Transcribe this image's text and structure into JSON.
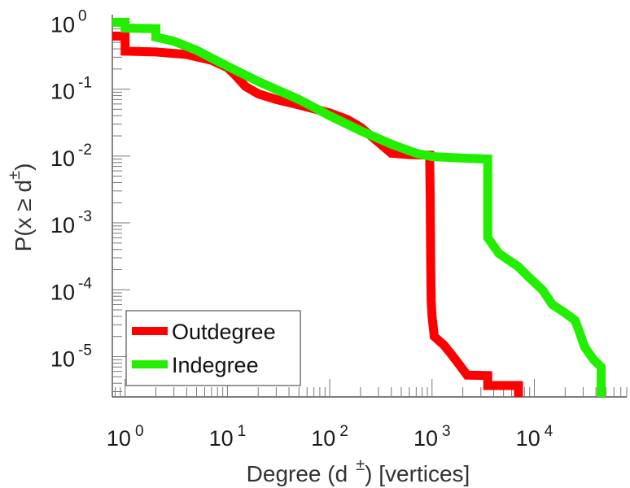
{
  "chart_data": {
    "type": "line",
    "scale": {
      "x": "log",
      "y": "log"
    },
    "xlabel": {
      "prefix": "Degree (d",
      "sup": "±",
      "suffix": ") [vertices]"
    },
    "ylabel": {
      "prefix": "P(x ≥ d",
      "sup": "±",
      "suffix": ")"
    },
    "xlim": [
      0.75,
      80000
    ],
    "ylim": [
      2.5e-06,
      1.3
    ],
    "x_ticks": [
      {
        "base": "10",
        "exp": "0",
        "value": 1
      },
      {
        "base": "10",
        "exp": "1",
        "value": 10
      },
      {
        "base": "10",
        "exp": "2",
        "value": 100
      },
      {
        "base": "10",
        "exp": "3",
        "value": 1000
      },
      {
        "base": "10",
        "exp": "4",
        "value": 10000
      }
    ],
    "y_ticks": [
      {
        "base": "10",
        "exp": "0",
        "value": 1
      },
      {
        "base": "10",
        "exp": "-1",
        "value": 0.1
      },
      {
        "base": "10",
        "exp": "-2",
        "value": 0.01
      },
      {
        "base": "10",
        "exp": "-3",
        "value": 0.001
      },
      {
        "base": "10",
        "exp": "-4",
        "value": 0.0001
      },
      {
        "base": "10",
        "exp": "-5",
        "value": 1e-05
      }
    ],
    "grid": false,
    "legend": {
      "position": "bottom-left"
    },
    "series": [
      {
        "name": "Outdegree",
        "color": "#ff0000",
        "points": [
          [
            0.75,
            0.62
          ],
          [
            1,
            0.62
          ],
          [
            1,
            0.37
          ],
          [
            2,
            0.36
          ],
          [
            4,
            0.33
          ],
          [
            7,
            0.27
          ],
          [
            10,
            0.21
          ],
          [
            12,
            0.16
          ],
          [
            15,
            0.11
          ],
          [
            20,
            0.085
          ],
          [
            30,
            0.07
          ],
          [
            50,
            0.058
          ],
          [
            100,
            0.044
          ],
          [
            150,
            0.035
          ],
          [
            200,
            0.027
          ],
          [
            300,
            0.016
          ],
          [
            400,
            0.011
          ],
          [
            600,
            0.0105
          ],
          [
            950,
            0.0103
          ],
          [
            950,
            0.008
          ],
          [
            960,
            0.002
          ],
          [
            970,
            0.0003
          ],
          [
            980,
            7e-05
          ],
          [
            1000,
            4e-05
          ],
          [
            1050,
            2e-05
          ],
          [
            1300,
            1.5e-05
          ],
          [
            1500,
            1.15e-05
          ],
          [
            1800,
            8e-06
          ],
          [
            2200,
            5.3e-06
          ],
          [
            3500,
            5.2e-06
          ],
          [
            3500,
            3.7e-06
          ],
          [
            7000,
            3.7e-06
          ],
          [
            7000,
            2.5e-06
          ]
        ]
      },
      {
        "name": "Indegree",
        "color": "#22ee00",
        "points": [
          [
            0.75,
            1.0
          ],
          [
            1,
            1.0
          ],
          [
            1,
            0.82
          ],
          [
            2,
            0.8
          ],
          [
            2,
            0.6
          ],
          [
            3,
            0.52
          ],
          [
            5,
            0.38
          ],
          [
            10,
            0.22
          ],
          [
            20,
            0.13
          ],
          [
            50,
            0.07
          ],
          [
            100,
            0.04
          ],
          [
            200,
            0.024
          ],
          [
            400,
            0.015
          ],
          [
            700,
            0.011
          ],
          [
            1000,
            0.0098
          ],
          [
            2000,
            0.0093
          ],
          [
            3500,
            0.009
          ],
          [
            3500,
            0.0006
          ],
          [
            4500,
            0.00035
          ],
          [
            7000,
            0.00022
          ],
          [
            9000,
            0.00015
          ],
          [
            12000,
            0.0001
          ],
          [
            15000,
            6e-05
          ],
          [
            20000,
            4.5e-05
          ],
          [
            25000,
            3.5e-05
          ],
          [
            28000,
            2.2e-05
          ],
          [
            31000,
            1.4e-05
          ],
          [
            38000,
            9e-06
          ],
          [
            45000,
            7e-06
          ],
          [
            45000,
            2.5e-06
          ]
        ]
      }
    ]
  }
}
